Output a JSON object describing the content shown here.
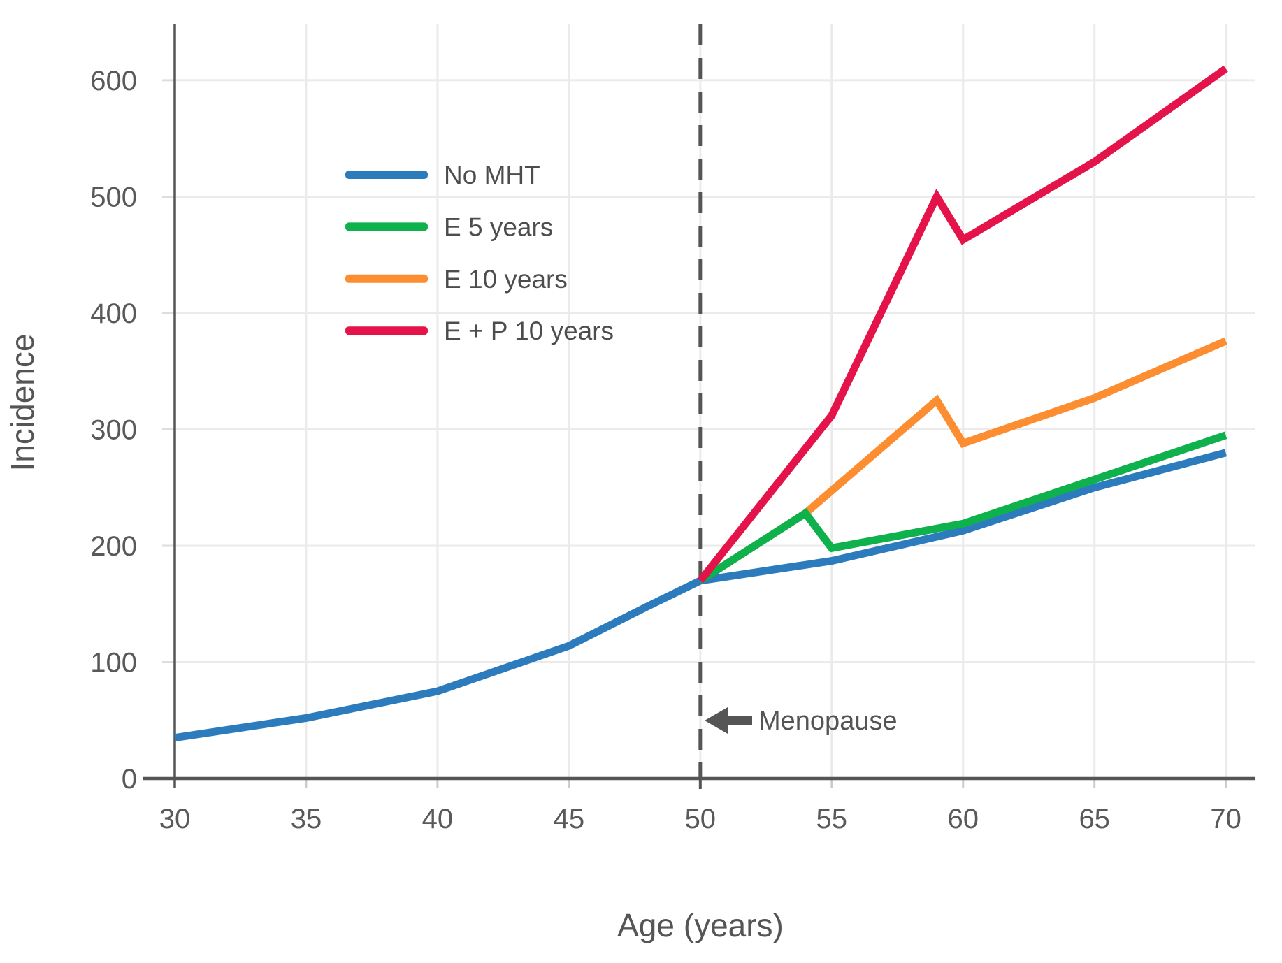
{
  "chart_data": {
    "type": "line",
    "title": "",
    "xlabel": "Age (years)",
    "ylabel": "Incidence",
    "xlim": [
      30,
      71.1
    ],
    "ylim": [
      0,
      648
    ],
    "x_ticks": [
      30,
      35,
      40,
      45,
      50,
      55,
      60,
      65,
      70
    ],
    "y_ticks": [
      0,
      100,
      200,
      300,
      400,
      500,
      600
    ],
    "grid": true,
    "legend_position": "upper-left-inside",
    "series": [
      {
        "name": "No MHT",
        "color": "#2B7BBD",
        "points": [
          [
            30,
            35
          ],
          [
            35,
            52
          ],
          [
            40,
            75
          ],
          [
            45,
            114
          ],
          [
            48,
            148
          ],
          [
            50,
            170
          ],
          [
            55,
            187
          ],
          [
            60,
            213
          ],
          [
            65,
            250
          ],
          [
            70,
            280
          ]
        ]
      },
      {
        "name": "E 5 years",
        "color": "#0EB14B",
        "points": [
          [
            50,
            170
          ],
          [
            54,
            228
          ],
          [
            55,
            198
          ],
          [
            60,
            219
          ],
          [
            65,
            257
          ],
          [
            70,
            295
          ]
        ]
      },
      {
        "name": "E 10 years",
        "color": "#FD8D31",
        "points": [
          [
            50,
            170
          ],
          [
            54,
            228
          ],
          [
            59,
            325
          ],
          [
            60,
            288
          ],
          [
            65,
            327
          ],
          [
            70,
            376
          ]
        ]
      },
      {
        "name": "E + P 10 years",
        "color": "#E41349",
        "points": [
          [
            50,
            170
          ],
          [
            55,
            312
          ],
          [
            59,
            500
          ],
          [
            60,
            463
          ],
          [
            65,
            530
          ],
          [
            70,
            610
          ]
        ]
      }
    ],
    "annotations": {
      "menopause_line": {
        "x": 50,
        "style": "dashed",
        "color": "#555555"
      },
      "menopause_label": {
        "text": "Menopause",
        "arrow": "left",
        "at_value_y": 50
      }
    }
  },
  "palette": {
    "background": "#ffffff",
    "grid": "#ebebeb",
    "axis": "#555555",
    "tick_text": "#595959",
    "legend_text": "#4d4d4d"
  }
}
